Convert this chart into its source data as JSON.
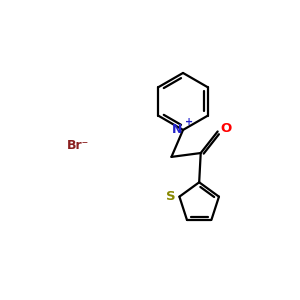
{
  "background_color": "#ffffff",
  "bond_color": "#000000",
  "N_color": "#2222cc",
  "O_color": "#ff0000",
  "S_color": "#888800",
  "Br_color": "#8b2020",
  "figsize": [
    3.0,
    3.0
  ],
  "dpi": 100,
  "Br_label": "Br⁻",
  "N_label": "N",
  "plus_label": "+",
  "O_label": "O",
  "S_label": "S",
  "lw": 1.6
}
